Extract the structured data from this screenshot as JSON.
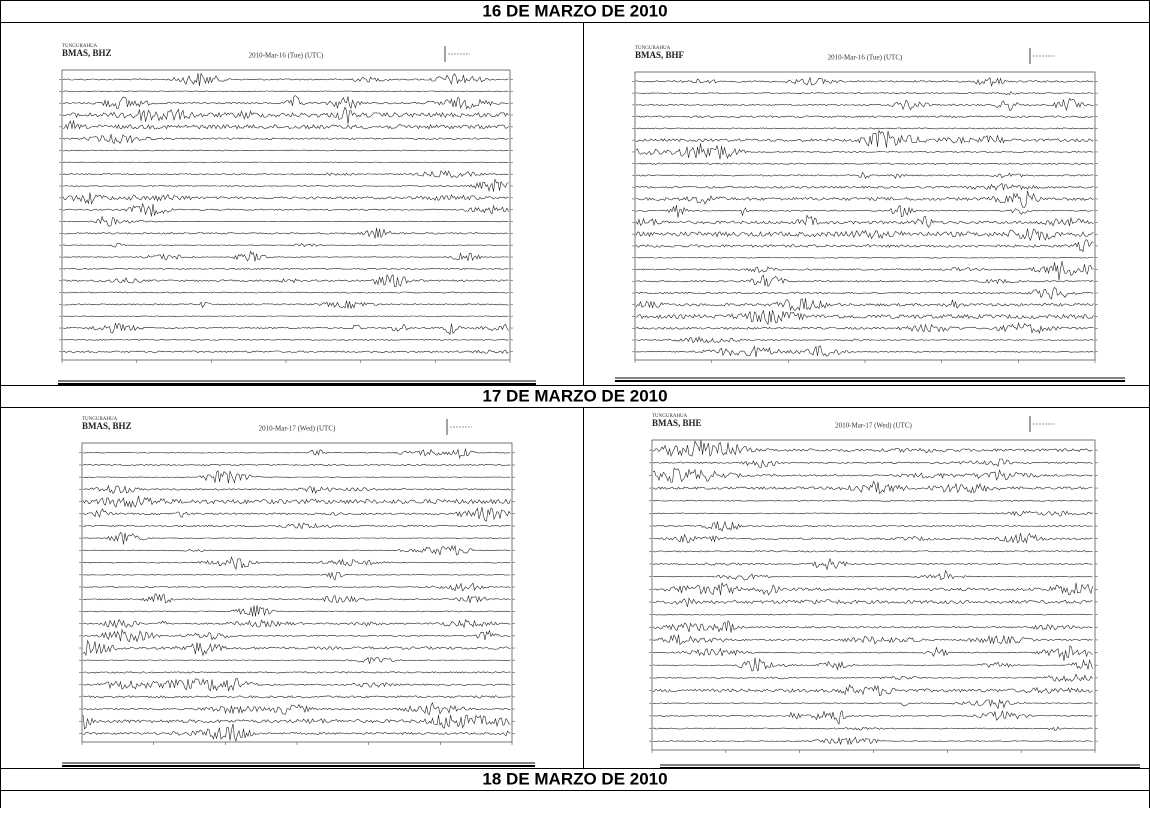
{
  "rows": [
    {
      "title": "16 DE MARZO DE 2010",
      "panels": [
        {
          "network": "TUNGURAHUA",
          "station": "BMAS, BHZ",
          "date": "2010-Mar-16 (Tue) (UTC)"
        },
        {
          "network": "TUNGURAHUA",
          "station": "BMAS, BHF",
          "date": "2010-Mar-16 (Tue) (UTC)"
        }
      ]
    },
    {
      "title": "17 DE MARZO DE 2010",
      "panels": [
        {
          "network": "TUNGURAHUA",
          "station": "BMAS, BHZ",
          "date": "2010-Mar-17 (Wed) (UTC)"
        },
        {
          "network": "TUNGURAHUA",
          "station": "BMAS, BHE",
          "date": "2010-Mar-17 (Wed) (UTC)"
        }
      ]
    },
    {
      "title": "18 DE MARZO DE 2010"
    }
  ]
}
